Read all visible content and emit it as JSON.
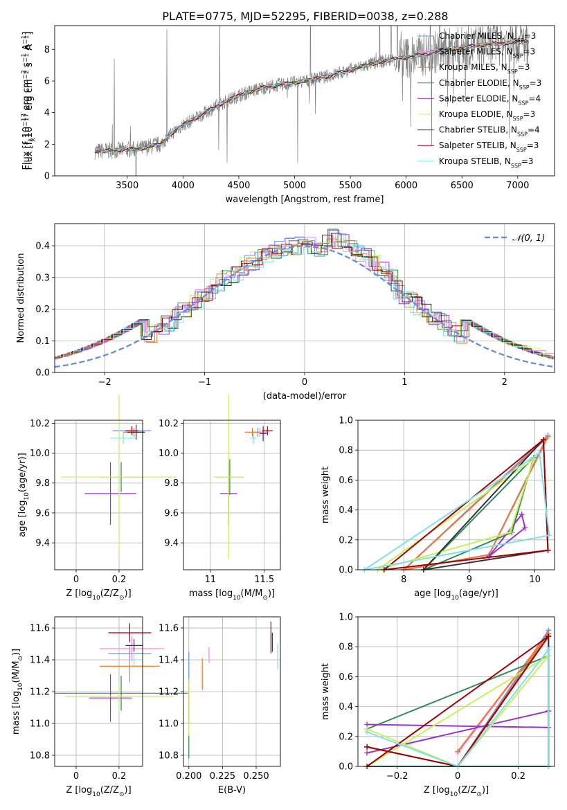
{
  "figure_title": "PLATE=0775, MJD=52295, FIBERID=0038, z=0.288",
  "model_colors": {
    "Chabrier MILES": "#6495ed",
    "Salpeter MILES": "#ee82ee",
    "Kroupa MILES": "#ee7a30",
    "Chabrier ELODIE": "#2e8b57",
    "Salpeter ELODIE": "#9932cc",
    "Kroupa ELODIE": "#c8f05a",
    "Chabrier STELIB": "#333333",
    "Salpeter STELIB": "#a00000",
    "Kroupa STELIB": "#7fdfe6"
  },
  "chart_data": [
    {
      "id": "spectrum",
      "type": "line",
      "xlabel": "wavelength [Angstrom, rest frame]",
      "ylabel_parts": [
        "Flux [f",
        "λ",
        "10",
        "−17",
        " erg cm",
        "−2",
        " s",
        "−1",
        " A",
        "−1",
        "]"
      ],
      "xlim": [
        2850,
        7330
      ],
      "ylim": [
        0,
        9.5
      ],
      "xticks": [
        3500,
        4000,
        4500,
        5000,
        5500,
        6000,
        6500,
        7000
      ],
      "yticks": [
        0,
        2,
        4,
        6,
        8
      ],
      "legend_position": "top-right",
      "legend": [
        {
          "label": "Chabrier MILES, N",
          "sub": "SSP",
          "suffix": "=3",
          "model": "Chabrier MILES"
        },
        {
          "label": "Salpeter MILES, N",
          "sub": "SSP",
          "suffix": "=3",
          "model": "Salpeter MILES"
        },
        {
          "label": "Kroupa MILES, N",
          "sub": "SSP",
          "suffix": "=3",
          "model": "Kroupa MILES"
        },
        {
          "label": "Chabrier ELODIE, N",
          "sub": "SSP",
          "suffix": "=3",
          "model": "Chabrier ELODIE"
        },
        {
          "label": "Salpeter ELODIE, N",
          "sub": "SSP",
          "suffix": "=4",
          "model": "Salpeter ELODIE"
        },
        {
          "label": "Kroupa ELODIE, N",
          "sub": "SSP",
          "suffix": "=3",
          "model": "Kroupa ELODIE"
        },
        {
          "label": "Chabrier STELIB, N",
          "sub": "SSP",
          "suffix": "=4",
          "model": "Chabrier STELIB"
        },
        {
          "label": "Salpeter STELIB, N",
          "sub": "SSP",
          "suffix": "=3",
          "model": "Salpeter STELIB"
        },
        {
          "label": "Kroupa STELIB, N",
          "sub": "SSP",
          "suffix": "=3",
          "model": "Kroupa STELIB"
        }
      ],
      "continuum_wavelength": [
        3210,
        3400,
        3600,
        3800,
        3950,
        4100,
        4300,
        4500,
        4700,
        4900,
        5100,
        5300,
        5500,
        5700,
        5900,
        6100,
        6300,
        6500,
        6700,
        6900,
        7100
      ],
      "continuum_flux": [
        1.55,
        1.62,
        1.7,
        2.0,
        3.0,
        3.6,
        4.4,
        5.1,
        5.55,
        5.8,
        6.0,
        6.3,
        6.7,
        7.1,
        7.4,
        7.6,
        7.9,
        8.1,
        8.3,
        8.4,
        8.5
      ],
      "data_color": "#808080"
    },
    {
      "id": "residuals",
      "type": "line",
      "xlabel": "(data-model)/error",
      "ylabel": "Normed distribution",
      "xlim": [
        -2.5,
        2.5
      ],
      "ylim": [
        0,
        0.47
      ],
      "xticks": [
        -2,
        -1,
        0,
        1,
        2
      ],
      "yticks": [
        0.0,
        0.1,
        0.2,
        0.3,
        0.4
      ],
      "grid": true,
      "legend_position": "top-right",
      "legend": [
        {
          "label": "𝒩(0, 1)",
          "color": "#6a8fd6",
          "style": "dashed"
        }
      ],
      "gaussian": {
        "mean": 0,
        "sigma": 1
      }
    },
    {
      "id": "z-age",
      "type": "scatter",
      "xlabel_parts": [
        "Z [log",
        "10",
        "(Z/Z",
        "⊙",
        ")]"
      ],
      "ylabel_parts": [
        "age  [log",
        "10",
        "(age/yr)]"
      ],
      "xlim": [
        -0.1,
        0.31
      ],
      "ylim": [
        9.22,
        10.22
      ],
      "xticks": [
        0.0,
        0.2
      ],
      "yticks": [
        9.4,
        9.6,
        9.8,
        10.0,
        10.2
      ],
      "grid": true,
      "points": [
        {
          "model": "Chabrier MILES",
          "x": 0.26,
          "y": 10.15,
          "xerr": 0.09,
          "yerr": 0.03
        },
        {
          "model": "Salpeter MILES",
          "x": 0.27,
          "y": 10.14,
          "xerr": 0.05,
          "yerr": 0.03
        },
        {
          "model": "Kroupa MILES",
          "x": 0.27,
          "y": 10.14,
          "xerr": 0.05,
          "yerr": 0.03
        },
        {
          "model": "Chabrier ELODIE",
          "x": 0.21,
          "y": 9.84,
          "xerr": 0.1,
          "yerr": 0.1
        },
        {
          "model": "Salpeter ELODIE",
          "x": 0.16,
          "y": 9.73,
          "xerr": 0.12,
          "yerr": 0.21
        },
        {
          "model": "Kroupa ELODIE",
          "x": 0.2,
          "y": 9.84,
          "xerr": 0.27,
          "yerr": 0.55
        },
        {
          "model": "Chabrier STELIB",
          "x": 0.28,
          "y": 10.14,
          "xerr": 0.04,
          "yerr": 0.05
        },
        {
          "model": "Salpeter STELIB",
          "x": 0.26,
          "y": 10.15,
          "xerr": 0.03,
          "yerr": 0.03
        },
        {
          "model": "Kroupa STELIB",
          "x": 0.22,
          "y": 10.1,
          "xerr": 0.06,
          "yerr": 0.04
        }
      ]
    },
    {
      "id": "mass-age",
      "type": "scatter",
      "xlabel_parts": [
        "mass [log",
        "10",
        "(M/M",
        "⊙",
        ")]"
      ],
      "ylabel_parts": [],
      "xlim": [
        10.75,
        11.65
      ],
      "ylim": [
        9.22,
        10.22
      ],
      "xticks": [
        11.0,
        11.5
      ],
      "yticks": [
        9.4,
        9.6,
        9.8,
        10.0,
        10.2
      ],
      "grid": true,
      "points": [
        {
          "model": "Chabrier MILES",
          "x": 11.44,
          "y": 10.14,
          "xerr": 0.05,
          "yerr": 0.03
        },
        {
          "model": "Salpeter MILES",
          "x": 11.46,
          "y": 10.14,
          "xerr": 0.07,
          "yerr": 0.03
        },
        {
          "model": "Kroupa MILES",
          "x": 11.39,
          "y": 10.14,
          "xerr": 0.07,
          "yerr": 0.03
        },
        {
          "model": "Chabrier ELODIE",
          "x": 11.18,
          "y": 9.84,
          "xerr": 0.13,
          "yerr": 0.12
        },
        {
          "model": "Salpeter ELODIE",
          "x": 11.17,
          "y": 9.73,
          "xerr": 0.08,
          "yerr": 0.21
        },
        {
          "model": "Kroupa ELODIE",
          "x": 11.17,
          "y": 9.84,
          "xerr": 0.14,
          "yerr": 0.55
        },
        {
          "model": "Chabrier STELIB",
          "x": 11.49,
          "y": 10.13,
          "xerr": 0.03,
          "yerr": 0.05
        },
        {
          "model": "Salpeter STELIB",
          "x": 11.53,
          "y": 10.15,
          "xerr": 0.05,
          "yerr": 0.03
        },
        {
          "model": "Kroupa STELIB",
          "x": 11.4,
          "y": 10.1,
          "xerr": 0.03,
          "yerr": 0.04
        }
      ]
    },
    {
      "id": "age-weight",
      "type": "line",
      "xlabel_parts": [
        "age  [log",
        "10",
        "(age/yr)]"
      ],
      "ylabel": "mass weight",
      "xlim": [
        7.3,
        10.3
      ],
      "ylim": [
        0,
        1
      ],
      "xticks": [
        8,
        9,
        10
      ],
      "yticks": [
        0.0,
        0.2,
        0.4,
        0.6,
        0.8,
        1.0
      ],
      "grid": true,
      "series": [
        {
          "model": "Chabrier MILES",
          "x": [
            8.0,
            9.3,
            10.2,
            8.0
          ],
          "y": [
            0.0,
            0.1,
            0.9,
            0.0
          ]
        },
        {
          "model": "Salpeter MILES",
          "x": [
            8.0,
            9.3,
            10.2,
            8.0
          ],
          "y": [
            0.0,
            0.1,
            0.89,
            0.0
          ]
        },
        {
          "model": "Kroupa MILES",
          "x": [
            8.0,
            9.3,
            10.2,
            8.0
          ],
          "y": [
            0.0,
            0.1,
            0.89,
            0.0
          ]
        },
        {
          "model": "Chabrier ELODIE",
          "x": [
            8.3,
            9.65,
            9.98,
            8.3
          ],
          "y": [
            0.0,
            0.25,
            0.75,
            0.0
          ]
        },
        {
          "model": "Salpeter ELODIE",
          "x": [
            9.3,
            9.8,
            9.85,
            9.3
          ],
          "y": [
            0.09,
            0.37,
            0.28,
            0.09
          ]
        },
        {
          "model": "Kroupa ELODIE",
          "x": [
            7.6,
            9.62,
            9.98,
            7.6
          ],
          "y": [
            0.0,
            0.25,
            0.74,
            0.0
          ]
        },
        {
          "model": "Chabrier STELIB",
          "x": [
            8.3,
            10.13,
            10.2,
            8.3
          ],
          "y": [
            0.0,
            0.87,
            0.13,
            0.0
          ]
        },
        {
          "model": "Salpeter STELIB",
          "x": [
            7.7,
            10.13,
            10.2,
            7.7
          ],
          "y": [
            0.0,
            0.87,
            0.13,
            0.0
          ]
        },
        {
          "model": "Kroupa STELIB",
          "x": [
            7.4,
            10.07,
            10.22,
            7.4
          ],
          "y": [
            0.0,
            0.78,
            0.23,
            0.0
          ]
        }
      ]
    },
    {
      "id": "z-mass",
      "type": "scatter",
      "xlabel_parts": [
        "Z [log",
        "10",
        "(Z/Z",
        "⊙",
        ")]"
      ],
      "ylabel_parts": [
        "mass [log",
        "10",
        "(M/M",
        "⊙",
        ")]"
      ],
      "xlim": [
        -0.1,
        0.31
      ],
      "ylim": [
        10.73,
        11.67
      ],
      "xticks": [
        0.0,
        0.2
      ],
      "yticks": [
        10.8,
        11.0,
        11.2,
        11.4,
        11.6
      ],
      "grid": true,
      "points": [
        {
          "model": "Chabrier MILES",
          "x": 0.25,
          "y": 11.44,
          "xerr": 0.1,
          "yerr": 0.05
        },
        {
          "model": "Salpeter MILES",
          "x": 0.26,
          "y": 11.47,
          "xerr": 0.15,
          "yerr": 0.08
        },
        {
          "model": "Kroupa MILES",
          "x": 0.25,
          "y": 11.36,
          "xerr": 0.14,
          "yerr": 0.1
        },
        {
          "model": "Chabrier ELODIE",
          "x": 0.21,
          "y": 11.19,
          "xerr": 0.31,
          "yerr": 0.11
        },
        {
          "model": "Salpeter ELODIE",
          "x": 0.16,
          "y": 11.16,
          "xerr": 0.1,
          "yerr": 0.15
        },
        {
          "model": "Kroupa ELODIE",
          "x": 0.2,
          "y": 11.17,
          "xerr": 0.25,
          "yerr": 0.1
        },
        {
          "model": "Chabrier STELIB",
          "x": 0.27,
          "y": 11.49,
          "xerr": 0.04,
          "yerr": 0.04
        },
        {
          "model": "Salpeter STELIB",
          "x": 0.25,
          "y": 11.57,
          "xerr": 0.1,
          "yerr": 0.06
        },
        {
          "model": "Kroupa STELIB",
          "x": 0.27,
          "y": 11.4,
          "xerr": 0.04,
          "yerr": 0.04
        }
      ]
    },
    {
      "id": "ebv-mass",
      "type": "scatter",
      "xlabel": "E(B-V)",
      "ylabel_parts": [],
      "xlim": [
        0.196,
        0.268
      ],
      "ylim": [
        10.73,
        11.67
      ],
      "xticks": [
        0.2,
        0.225,
        0.25
      ],
      "xtick_labels": [
        "0.200",
        "0.225",
        "0.250"
      ],
      "yticks": [
        10.8,
        11.0,
        11.2,
        11.4,
        11.6
      ],
      "grid": true,
      "points": [
        {
          "model": "Chabrier MILES",
          "x": 0.2,
          "y": 11.35,
          "xerr": 0.0,
          "yerr": 0.1
        },
        {
          "model": "Salpeter MILES",
          "x": 0.215,
          "y": 11.43,
          "xerr": 0.0,
          "yerr": 0.05
        },
        {
          "model": "Kroupa MILES",
          "x": 0.21,
          "y": 11.31,
          "xerr": 0.0,
          "yerr": 0.1
        },
        {
          "model": "Chabrier ELODIE",
          "x": 0.2,
          "y": 10.86,
          "xerr": 0.0,
          "yerr": 0.08
        },
        {
          "model": "Salpeter ELODIE",
          "x": 0.2,
          "y": 11.14,
          "xerr": 0.0,
          "yerr": 0.14
        },
        {
          "model": "Kroupa ELODIE",
          "x": 0.2,
          "y": 11.1,
          "xerr": 0.0,
          "yerr": 0.18
        },
        {
          "model": "Chabrier STELIB",
          "x": 0.262,
          "y": 11.51,
          "xerr": 0.0,
          "yerr": 0.06
        },
        {
          "model": "Salpeter STELIB",
          "x": 0.261,
          "y": 11.54,
          "xerr": 0.0,
          "yerr": 0.1
        },
        {
          "model": "Kroupa STELIB",
          "x": 0.266,
          "y": 11.42,
          "xerr": 0.0,
          "yerr": 0.08
        }
      ]
    },
    {
      "id": "z-weight",
      "type": "line",
      "xlabel_parts": [
        "Z [log",
        "10",
        "(Z/Z",
        "⊙",
        ")]"
      ],
      "ylabel": "mass weight",
      "xlim": [
        -0.33,
        0.32
      ],
      "ylim": [
        0,
        1
      ],
      "xticks": [
        -0.2,
        0.0,
        0.2
      ],
      "yticks": [
        0.0,
        0.2,
        0.4,
        0.6,
        0.8,
        1.0
      ],
      "grid": true,
      "series": [
        {
          "model": "Chabrier MILES",
          "x": [
            0.0,
            0.3,
            0.3
          ],
          "y": [
            0.0,
            0.91,
            0.0
          ]
        },
        {
          "model": "Salpeter MILES",
          "x": [
            0.0,
            0.3,
            0.0
          ],
          "y": [
            0.09,
            0.89,
            0.0
          ]
        },
        {
          "model": "Kroupa MILES",
          "x": [
            0.0,
            0.3,
            0.0
          ],
          "y": [
            0.1,
            0.89,
            0.0
          ]
        },
        {
          "model": "Chabrier ELODIE",
          "x": [
            -0.3,
            0.3,
            0.3,
            -0.3
          ],
          "y": [
            0.25,
            0.74,
            0.0,
            0.0
          ]
        },
        {
          "model": "Salpeter ELODIE",
          "x": [
            -0.3,
            0.3,
            0.3,
            -0.3
          ],
          "y": [
            0.28,
            0.26,
            0.37,
            0.09
          ]
        },
        {
          "model": "Kroupa ELODIE",
          "x": [
            -0.3,
            0.0,
            0.3,
            -0.3
          ],
          "y": [
            0.25,
            0.0,
            0.74,
            0.0
          ]
        },
        {
          "model": "Chabrier STELIB",
          "x": [
            -0.3,
            0.0,
            0.3,
            0.3
          ],
          "y": [
            0.13,
            0.0,
            0.87,
            0.0
          ]
        },
        {
          "model": "Salpeter STELIB",
          "x": [
            -0.3,
            0.0,
            0.3,
            -0.3
          ],
          "y": [
            0.13,
            0.0,
            0.87,
            0.0
          ]
        },
        {
          "model": "Kroupa STELIB",
          "x": [
            -0.3,
            0.0,
            0.3,
            0.3
          ],
          "y": [
            0.23,
            0.0,
            0.78,
            0.0
          ]
        }
      ]
    }
  ]
}
